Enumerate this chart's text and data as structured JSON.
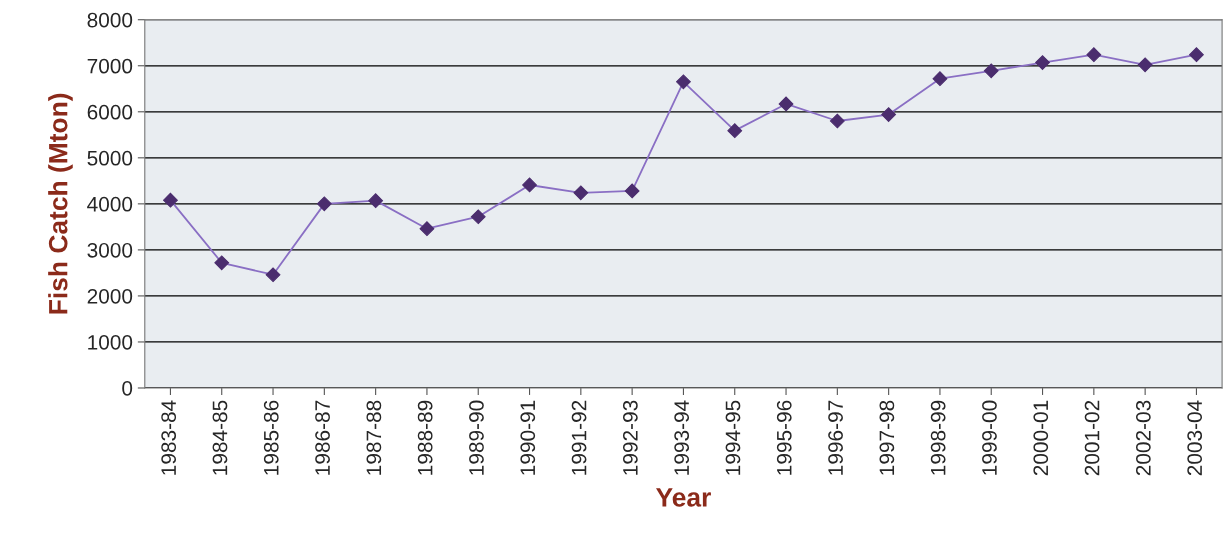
{
  "chart_data": {
    "type": "line",
    "xlabel": "Year",
    "ylabel": "Fish Catch (Mton)",
    "categories": [
      "1983-84",
      "1984-85",
      "1985-86",
      "1986-87",
      "1987-88",
      "1988-89",
      "1989-90",
      "1990-91",
      "1991-92",
      "1992-93",
      "1993-94",
      "1994-95",
      "1995-96",
      "1996-97",
      "1997-98",
      "1998-99",
      "1999-00",
      "2000-01",
      "2001-02",
      "2002-03",
      "2003-04"
    ],
    "series": [
      {
        "color": "#4b2d6e",
        "values": [
          4080,
          2720,
          2460,
          4000,
          4070,
          3460,
          3720,
          4410,
          4240,
          4280,
          6650,
          5590,
          6170,
          5800,
          5940,
          6720,
          6890,
          7070,
          7240,
          7020,
          7240
        ]
      }
    ],
    "ylim": [
      0,
      8000
    ],
    "yticks": [
      0,
      1000,
      2000,
      3000,
      4000,
      5000,
      6000,
      7000,
      8000
    ],
    "grid": "y",
    "marker": "diamond",
    "line_style": "solid"
  }
}
